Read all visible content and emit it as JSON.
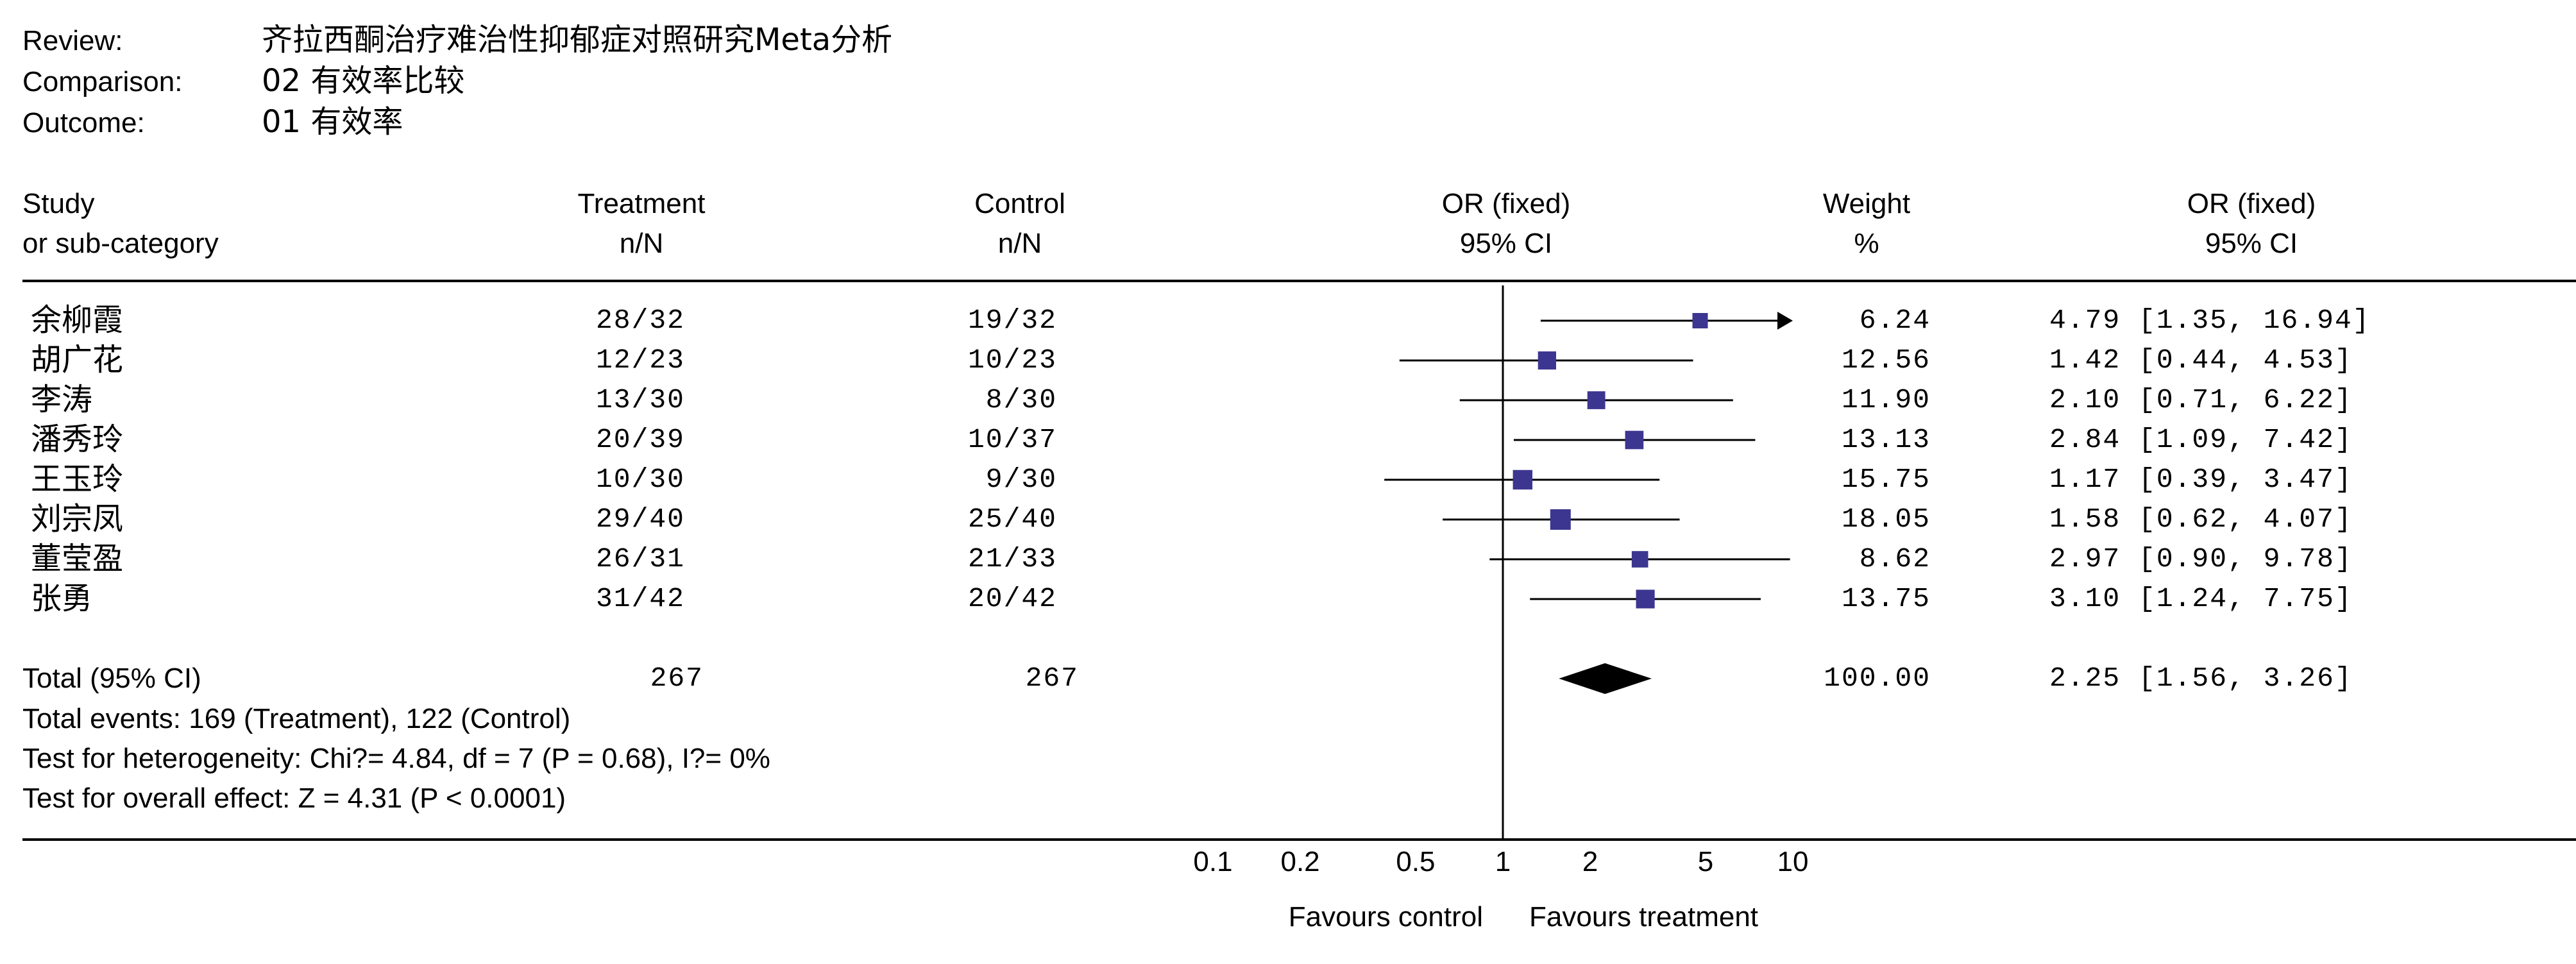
{
  "header": {
    "review_label": "Review:",
    "review_value": "齐拉西酮治疗难治性抑郁症对照研究Meta分析",
    "comparison_label": "Comparison:",
    "comparison_value": "02 有效率比较",
    "outcome_label": "Outcome:",
    "outcome_value": "01 有效率"
  },
  "columns": {
    "study_1": "Study",
    "study_2": "or sub-category",
    "treatment_1": "Treatment",
    "treatment_2": "n/N",
    "control_1": "Control",
    "control_2": "n/N",
    "or_plot_1": "OR (fixed)",
    "or_plot_2": "95% CI",
    "weight_1": "Weight",
    "weight_2": "%",
    "or_text_1": "OR (fixed)",
    "or_text_2": "95% CI"
  },
  "rows": [
    {
      "study": "余柳霞",
      "treatment": "28/32",
      "control": "19/32",
      "weight": "6.24",
      "or_text": "4.79 [1.35, 16.94]"
    },
    {
      "study": "胡广花",
      "treatment": "12/23",
      "control": "10/23",
      "weight": "12.56",
      "or_text": "1.42 [0.44, 4.53]"
    },
    {
      "study": "李涛",
      "treatment": "13/30",
      "control": "8/30",
      "weight": "11.90",
      "or_text": "2.10 [0.71, 6.22]"
    },
    {
      "study": "潘秀玲",
      "treatment": "20/39",
      "control": "10/37",
      "weight": "13.13",
      "or_text": "2.84 [1.09, 7.42]"
    },
    {
      "study": "王玉玲",
      "treatment": "10/30",
      "control": "9/30",
      "weight": "15.75",
      "or_text": "1.17 [0.39, 3.47]"
    },
    {
      "study": "刘宗凤",
      "treatment": "29/40",
      "control": "25/40",
      "weight": "18.05",
      "or_text": "1.58 [0.62, 4.07]"
    },
    {
      "study": "董莹盈",
      "treatment": "26/31",
      "control": "21/33",
      "weight": "8.62",
      "or_text": "2.97 [0.90, 9.78]"
    },
    {
      "study": "张勇",
      "treatment": "31/42",
      "control": "20/42",
      "weight": "13.75",
      "or_text": "3.10 [1.24, 7.75]"
    }
  ],
  "total": {
    "label": "Total (95% CI)",
    "treatment": "267",
    "control": "267",
    "weight": "100.00",
    "or_text": "2.25 [1.56, 3.26]"
  },
  "footnotes": {
    "events": "Total events: 169 (Treatment), 122 (Control)",
    "heterogeneity": "Test for heterogeneity: Chi?= 4.84, df = 7 (P = 0.68), I?= 0%",
    "overall": "Test for overall effect: Z = 4.31 (P < 0.0001)"
  },
  "axis": {
    "favours_left": "Favours control",
    "favours_right": "Favours treatment"
  },
  "colors": {
    "marker": "#3c3690",
    "line": "#000000"
  },
  "chart_data": {
    "type": "forest",
    "scale": "log",
    "xlim": [
      0.1,
      10
    ],
    "ticks": [
      0.1,
      0.2,
      0.5,
      1,
      2,
      5,
      10
    ],
    "tick_labels": [
      "0.1",
      "0.2",
      "0.5",
      "1",
      "2",
      "5",
      "10"
    ],
    "xlabel_left": "Favours control",
    "xlabel_right": "Favours treatment",
    "studies": [
      {
        "name": "余柳霞",
        "or": 4.79,
        "lo": 1.35,
        "hi": 16.94,
        "weight": 6.24
      },
      {
        "name": "胡广花",
        "or": 1.42,
        "lo": 0.44,
        "hi": 4.53,
        "weight": 12.56
      },
      {
        "name": "李涛",
        "or": 2.1,
        "lo": 0.71,
        "hi": 6.22,
        "weight": 11.9
      },
      {
        "name": "潘秀玲",
        "or": 2.84,
        "lo": 1.09,
        "hi": 7.42,
        "weight": 13.13
      },
      {
        "name": "王玉玲",
        "or": 1.17,
        "lo": 0.39,
        "hi": 3.47,
        "weight": 15.75
      },
      {
        "name": "刘宗凤",
        "or": 1.58,
        "lo": 0.62,
        "hi": 4.07,
        "weight": 18.05
      },
      {
        "name": "董莹盈",
        "or": 2.97,
        "lo": 0.9,
        "hi": 9.78,
        "weight": 8.62
      },
      {
        "name": "张勇",
        "or": 3.1,
        "lo": 1.24,
        "hi": 7.75,
        "weight": 13.75
      }
    ],
    "pooled": {
      "or": 2.25,
      "lo": 1.56,
      "hi": 3.26,
      "weight": 100.0
    }
  }
}
